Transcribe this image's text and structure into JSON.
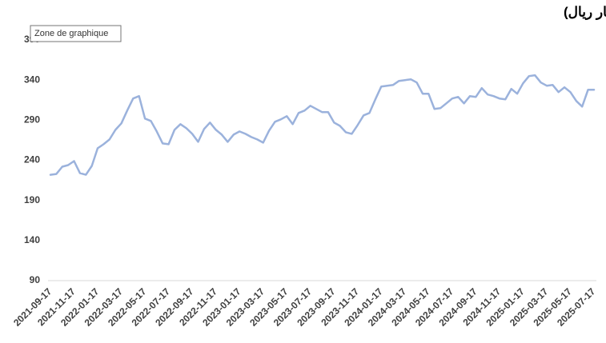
{
  "tooltip": "Zone de graphique",
  "chart_data": {
    "type": "line",
    "title": "تطور ملكية المستثمرين الأجانب غير المؤسسين في سوق الأسهم السعودي (مليار ريال)",
    "categories": [
      "2021-09-17",
      null,
      null,
      null,
      "2021-11-17",
      null,
      null,
      null,
      "2022-01-17",
      null,
      null,
      null,
      "2022-03-17",
      null,
      null,
      null,
      "2022-05-17",
      null,
      null,
      null,
      "2022-07-17",
      null,
      null,
      null,
      "2022-09-17",
      null,
      null,
      null,
      "2022-11-17",
      null,
      null,
      null,
      "2023-01-17",
      null,
      null,
      null,
      "2023-03-17",
      null,
      null,
      null,
      "2023-05-17",
      null,
      null,
      null,
      "2023-07-17",
      null,
      null,
      null,
      "2023-09-17",
      null,
      null,
      null,
      "2023-11-17",
      null,
      null,
      null,
      "2024-01-17",
      null,
      null,
      null,
      "2024-03-17",
      null,
      null,
      null,
      "2024-05-17",
      null,
      null,
      null,
      "2024-07-17",
      null,
      null,
      null,
      "2024-09-17",
      null,
      null,
      null,
      "2024-11-17",
      null,
      null,
      null,
      "2025-01-17",
      null,
      null,
      null,
      "2025-03-17",
      null,
      null,
      null,
      "2025-05-17",
      null,
      null,
      null,
      "2025-07-17"
    ],
    "values": [
      222,
      223,
      232,
      234,
      239,
      224,
      222,
      233,
      255,
      260,
      266,
      278,
      286,
      302,
      317,
      320,
      292,
      289,
      276,
      261,
      260,
      278,
      285,
      280,
      273,
      263,
      279,
      287,
      278,
      272,
      263,
      272,
      276,
      273,
      269,
      266,
      262,
      277,
      288,
      291,
      295,
      285,
      299,
      302,
      308,
      304,
      300,
      300,
      287,
      283,
      275,
      273,
      284,
      296,
      299,
      316,
      332,
      333,
      334,
      339,
      340,
      341,
      337,
      323,
      323,
      304,
      305,
      311,
      317,
      319,
      311,
      320,
      319,
      330,
      322,
      320,
      317,
      316,
      329,
      323,
      336,
      345,
      346,
      337,
      333,
      334,
      325,
      331,
      325,
      314,
      307,
      328,
      328
    ],
    "color": "#9bb2dc",
    "ylim": [
      90,
      390
    ],
    "yticks": [
      90,
      140,
      190,
      240,
      290,
      340,
      390
    ],
    "grid": false
  }
}
